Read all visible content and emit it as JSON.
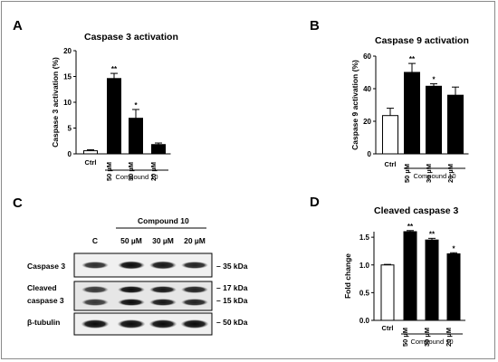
{
  "panels": [
    {
      "letter": "A",
      "title": "Caspase 3 activation"
    },
    {
      "letter": "B",
      "title": "Caspase 9 activation"
    },
    {
      "letter": "C",
      "title": ""
    },
    {
      "letter": "D",
      "title": "Cleaved caspase 3"
    }
  ],
  "chart_data": [
    {
      "panel": "A",
      "type": "bar",
      "title": "Caspase 3 activation",
      "xlabel": "Compound 10",
      "ylabel": "Caspase 3 activation (%)",
      "categories": [
        "Ctrl",
        "50 µM",
        "30 µM",
        "20 µM"
      ],
      "values": [
        0.6,
        14.6,
        6.9,
        1.8
      ],
      "errors": [
        0.2,
        1.0,
        1.7,
        0.3
      ],
      "significance": [
        "",
        "**",
        "*",
        ""
      ],
      "fill": [
        "#ffffff",
        "#000000",
        "#000000",
        "#000000"
      ],
      "yticks": [
        0,
        5,
        10,
        15,
        20
      ],
      "ylim": [
        0,
        20
      ],
      "grid": false
    },
    {
      "panel": "B",
      "type": "bar",
      "title": "Caspase 9 activation",
      "xlabel": "Compound 10",
      "ylabel": "Caspase 9 activation (%)",
      "categories": [
        "Ctrl",
        "50 µM",
        "30 µM",
        "20 µM"
      ],
      "values": [
        23.5,
        50.0,
        41.5,
        36.0
      ],
      "errors": [
        4.5,
        5.5,
        1.5,
        5.0
      ],
      "significance": [
        "",
        "**",
        "*",
        ""
      ],
      "fill": [
        "#ffffff",
        "#000000",
        "#000000",
        "#000000"
      ],
      "yticks": [
        0,
        20,
        40,
        60
      ],
      "ylim": [
        0,
        60
      ],
      "grid": false
    },
    {
      "panel": "D",
      "type": "bar",
      "title": "Cleaved caspase 3",
      "xlabel": "Compound 10",
      "ylabel": "Fold change",
      "categories": [
        "Ctrl",
        "50 µM",
        "30 µM",
        "20 µM"
      ],
      "values": [
        1.0,
        1.6,
        1.45,
        1.2
      ],
      "errors": [
        0.01,
        0.02,
        0.03,
        0.02
      ],
      "significance": [
        "",
        "**",
        "**",
        "*"
      ],
      "fill": [
        "#ffffff",
        "#000000",
        "#000000",
        "#000000"
      ],
      "yticks": [
        0.0,
        0.5,
        1.0,
        1.5
      ],
      "ylim": [
        0,
        1.6
      ],
      "grid": false
    }
  ],
  "blot": {
    "group_label": "Compound 10",
    "lanes": [
      "C",
      "50 µM",
      "30 µM",
      "20 µM"
    ],
    "rows": [
      {
        "label": "Caspase 3",
        "markers": [
          "35 kDa"
        ]
      },
      {
        "label": "Cleaved\ncaspase 3",
        "markers": [
          "17 kDa",
          "15 kDa"
        ]
      },
      {
        "label": "β-tubulin",
        "markers": [
          "50 kDa"
        ]
      }
    ]
  }
}
